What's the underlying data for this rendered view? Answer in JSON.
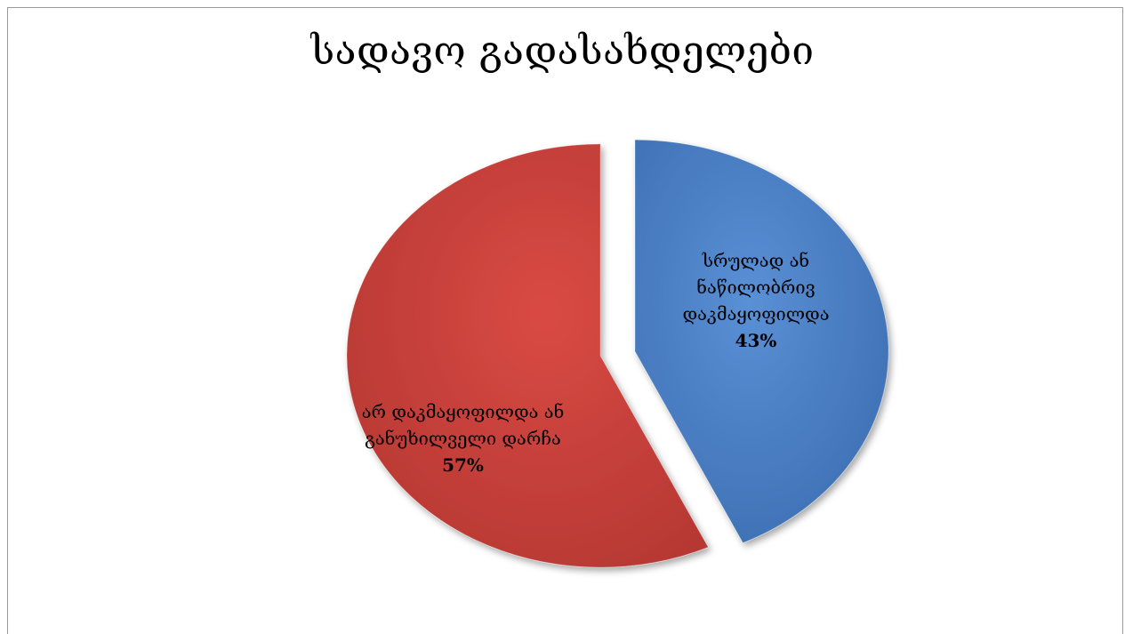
{
  "title": "სადავო გადასახდელები",
  "chart_data": {
    "type": "pie",
    "title": "სადავო გადასახდელები",
    "slices": [
      {
        "label": "სრულად ან ნაწილობრივ დაკმაყოფილდა",
        "value": 43,
        "display": "43%",
        "color": "#4a7fc4",
        "exploded": true
      },
      {
        "label": "არ დაკმაყოფილდა ან განუხილველი დარჩა",
        "value": 57,
        "display": "57%",
        "color": "#c9403b",
        "exploded": false
      }
    ]
  }
}
